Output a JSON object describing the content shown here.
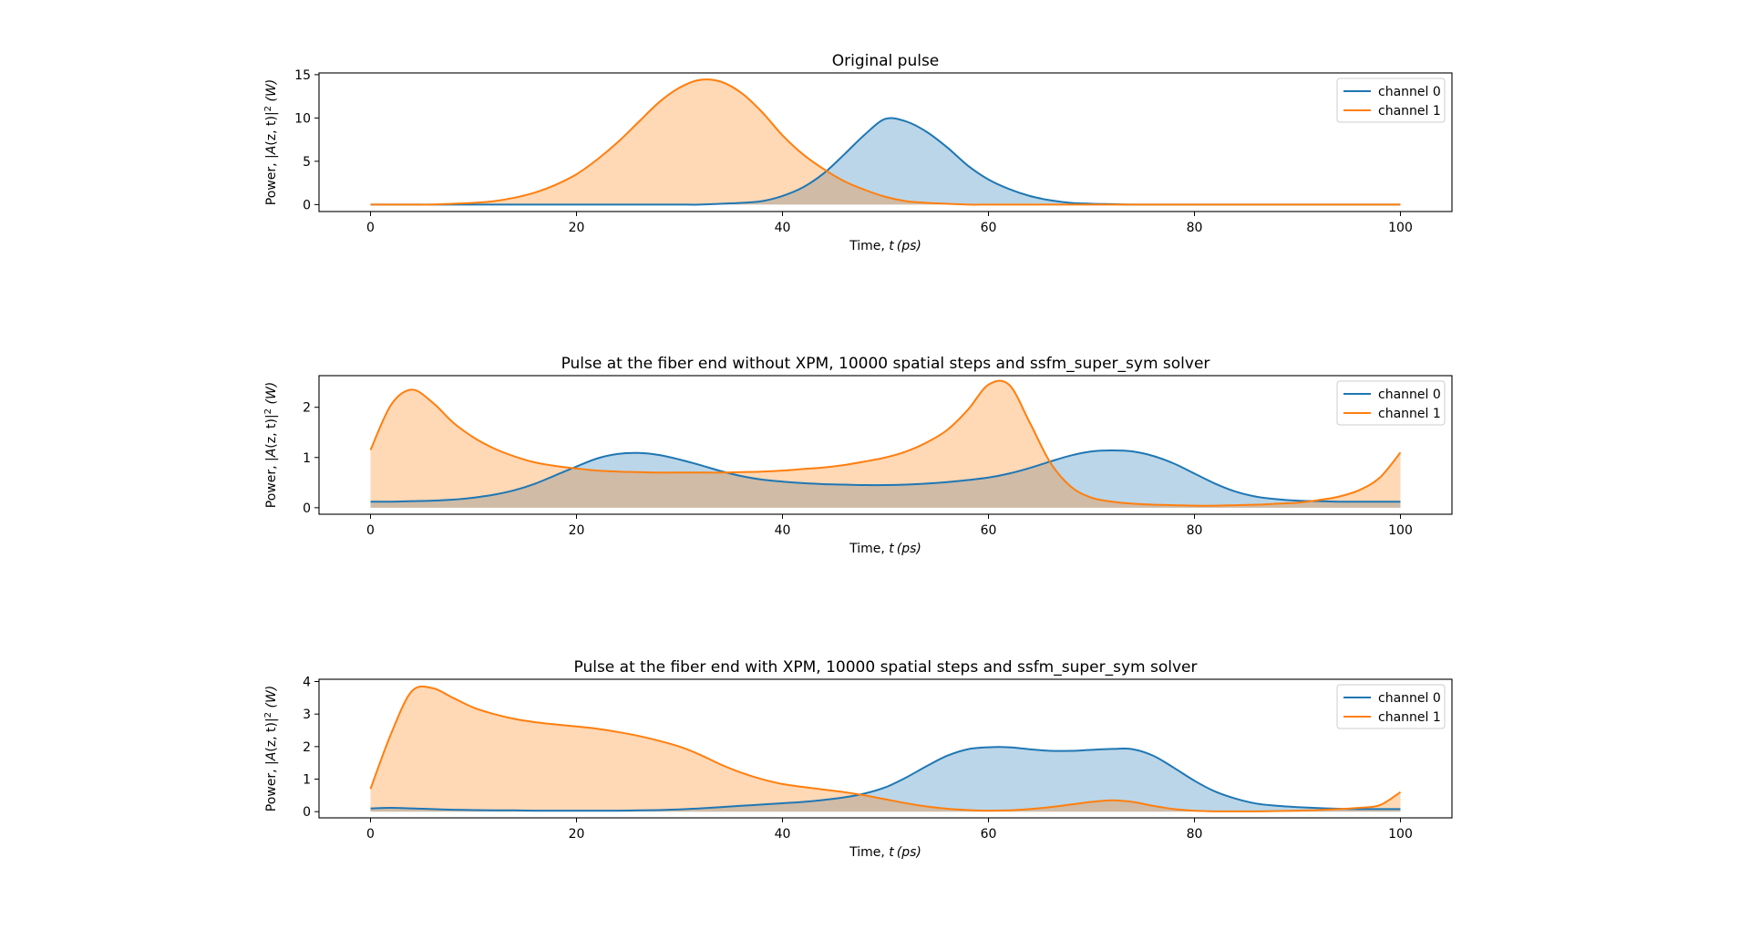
{
  "figure": {
    "xlabel_prefix": "Time, ",
    "xlabel_var": "t",
    "xlabel_unit": "(ps)",
    "ylabel_prefix": "Power, |",
    "ylabel_func": "A",
    "ylabel_args": "(z, t)|",
    "ylabel_exp": "2",
    "ylabel_unit": " (W)"
  },
  "colors": {
    "channel_0": "#1f77b4",
    "channel_1": "#ff7f0e"
  },
  "chart_data": [
    {
      "type": "area",
      "title": "Original pulse",
      "xlabel": "Time, t (ps)",
      "ylabel": "Power, |A(z, t)|² (W)",
      "xlim": [
        -5,
        105
      ],
      "ylim": [
        -0.8,
        15.2
      ],
      "xticks": [
        0,
        20,
        40,
        60,
        80,
        100
      ],
      "yticks": [
        0,
        5,
        10,
        15
      ],
      "legend": "top-right",
      "grid": false,
      "x": [
        0,
        2,
        4,
        6,
        8,
        10,
        12,
        14,
        16,
        18,
        20,
        22,
        24,
        26,
        28,
        30,
        32,
        34,
        36,
        38,
        40,
        42,
        44,
        46,
        48,
        50,
        52,
        54,
        56,
        58,
        60,
        62,
        64,
        66,
        68,
        70,
        72,
        74,
        76,
        78,
        80,
        82,
        84,
        86,
        88,
        90,
        92,
        94,
        96,
        98,
        100
      ],
      "series": [
        {
          "name": "channel 0",
          "values": [
            0,
            0,
            0,
            0,
            0,
            0,
            0,
            0,
            0,
            0,
            0,
            0,
            0,
            0,
            0,
            0,
            0,
            0.1,
            0.2,
            0.4,
            1.0,
            2.0,
            3.6,
            5.8,
            8.1,
            9.9,
            9.6,
            8.4,
            6.6,
            4.5,
            2.9,
            1.8,
            1.0,
            0.5,
            0.2,
            0.1,
            0.05,
            0,
            0,
            0,
            0,
            0,
            0,
            0,
            0,
            0,
            0,
            0,
            0,
            0,
            0
          ]
        },
        {
          "name": "channel 1",
          "values": [
            0,
            0,
            0,
            0,
            0.1,
            0.2,
            0.4,
            0.8,
            1.4,
            2.3,
            3.5,
            5.2,
            7.2,
            9.5,
            11.8,
            13.5,
            14.4,
            14.2,
            12.9,
            10.7,
            8.0,
            5.8,
            4.1,
            2.7,
            1.7,
            0.9,
            0.4,
            0.2,
            0.1,
            0,
            0,
            0,
            0,
            0,
            0,
            0,
            0,
            0,
            0,
            0,
            0,
            0,
            0,
            0,
            0,
            0,
            0,
            0,
            0,
            0,
            0
          ]
        }
      ]
    },
    {
      "type": "area",
      "title": "Pulse at the fiber end without XPM, 10000 spatial steps and ssfm_super_sym solver",
      "xlabel": "Time, t (ps)",
      "ylabel": "Power, |A(z, t)|² (W)",
      "xlim": [
        -5,
        105
      ],
      "ylim": [
        -0.13,
        2.63
      ],
      "xticks": [
        0,
        20,
        40,
        60,
        80,
        100
      ],
      "yticks": [
        0,
        1,
        2
      ],
      "legend": "top-right",
      "grid": false,
      "x": [
        0,
        2,
        4,
        6,
        8,
        10,
        12,
        14,
        16,
        18,
        20,
        22,
        24,
        26,
        28,
        30,
        32,
        34,
        36,
        38,
        40,
        42,
        44,
        46,
        48,
        50,
        52,
        54,
        56,
        58,
        60,
        62,
        64,
        66,
        68,
        70,
        72,
        74,
        76,
        78,
        80,
        82,
        84,
        86,
        88,
        90,
        92,
        94,
        96,
        98,
        100
      ],
      "series": [
        {
          "name": "channel 0",
          "values": [
            0.12,
            0.12,
            0.13,
            0.14,
            0.16,
            0.2,
            0.26,
            0.35,
            0.48,
            0.65,
            0.82,
            0.98,
            1.07,
            1.09,
            1.05,
            0.96,
            0.85,
            0.73,
            0.63,
            0.56,
            0.52,
            0.49,
            0.47,
            0.46,
            0.45,
            0.45,
            0.46,
            0.48,
            0.51,
            0.55,
            0.6,
            0.68,
            0.79,
            0.92,
            1.04,
            1.12,
            1.14,
            1.12,
            1.03,
            0.88,
            0.68,
            0.48,
            0.32,
            0.22,
            0.17,
            0.14,
            0.13,
            0.12,
            0.12,
            0.12,
            0.12
          ]
        },
        {
          "name": "channel 1",
          "values": [
            1.15,
            2.05,
            2.35,
            2.1,
            1.7,
            1.4,
            1.18,
            1.02,
            0.9,
            0.83,
            0.78,
            0.74,
            0.72,
            0.71,
            0.7,
            0.7,
            0.7,
            0.7,
            0.71,
            0.72,
            0.74,
            0.77,
            0.8,
            0.85,
            0.92,
            1.0,
            1.12,
            1.3,
            1.55,
            1.95,
            2.45,
            2.45,
            1.7,
            0.9,
            0.42,
            0.2,
            0.12,
            0.08,
            0.06,
            0.05,
            0.04,
            0.04,
            0.05,
            0.06,
            0.08,
            0.1,
            0.15,
            0.22,
            0.35,
            0.6,
            1.1
          ]
        }
      ]
    },
    {
      "type": "area",
      "title": "Pulse at the fiber end with XPM, 10000 spatial steps and ssfm_super_sym solver",
      "xlabel": "Time, t (ps)",
      "ylabel": "Power, |A(z, t)|² (W)",
      "xlim": [
        -5,
        105
      ],
      "ylim": [
        -0.19,
        4.07
      ],
      "xticks": [
        0,
        20,
        40,
        60,
        80,
        100
      ],
      "yticks": [
        0,
        1,
        2,
        3,
        4
      ],
      "legend": "top-right",
      "grid": false,
      "x": [
        0,
        2,
        4,
        6,
        8,
        10,
        12,
        14,
        16,
        18,
        20,
        22,
        24,
        26,
        28,
        30,
        32,
        34,
        36,
        38,
        40,
        42,
        44,
        46,
        48,
        50,
        52,
        54,
        56,
        58,
        60,
        62,
        64,
        66,
        68,
        70,
        72,
        74,
        76,
        78,
        80,
        82,
        84,
        86,
        88,
        90,
        92,
        94,
        96,
        98,
        100
      ],
      "series": [
        {
          "name": "channel 0",
          "values": [
            0.1,
            0.12,
            0.1,
            0.08,
            0.06,
            0.05,
            0.04,
            0.04,
            0.03,
            0.03,
            0.03,
            0.03,
            0.03,
            0.04,
            0.05,
            0.07,
            0.1,
            0.14,
            0.18,
            0.22,
            0.26,
            0.3,
            0.36,
            0.44,
            0.56,
            0.75,
            1.05,
            1.4,
            1.72,
            1.92,
            1.98,
            1.98,
            1.92,
            1.87,
            1.87,
            1.9,
            1.93,
            1.92,
            1.72,
            1.35,
            0.95,
            0.62,
            0.4,
            0.25,
            0.18,
            0.14,
            0.11,
            0.09,
            0.08,
            0.08,
            0.08
          ]
        },
        {
          "name": "channel 1",
          "values": [
            0.7,
            2.4,
            3.7,
            3.8,
            3.5,
            3.2,
            3.0,
            2.85,
            2.75,
            2.68,
            2.62,
            2.55,
            2.45,
            2.33,
            2.18,
            2.0,
            1.75,
            1.45,
            1.2,
            1.0,
            0.85,
            0.76,
            0.68,
            0.6,
            0.5,
            0.38,
            0.26,
            0.16,
            0.09,
            0.05,
            0.03,
            0.04,
            0.08,
            0.14,
            0.22,
            0.3,
            0.35,
            0.3,
            0.18,
            0.08,
            0.03,
            0.01,
            0.01,
            0.01,
            0.02,
            0.03,
            0.05,
            0.08,
            0.12,
            0.2,
            0.6
          ]
        }
      ]
    }
  ]
}
